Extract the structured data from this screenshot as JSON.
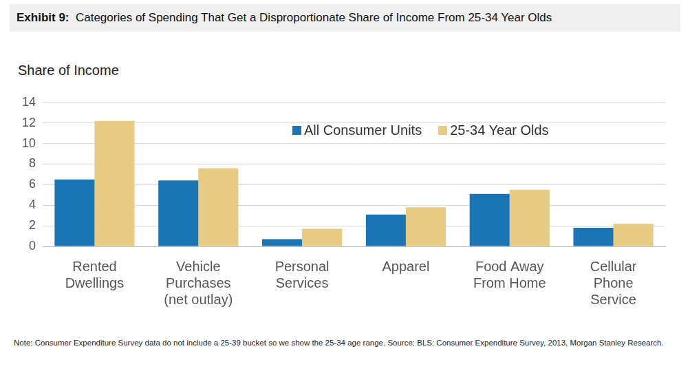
{
  "chart_data": {
    "type": "bar",
    "title": "Exhibit 9:  Categories of Spending That Get a Disproportionate Share of Income From 25-34 Year Olds",
    "y_label": "Share of Income",
    "note": "Note: Consumer Expenditure Survey data do not include a 25-39 bucket so we show the 25-34 age range. Source: BLS: Consumer Expenditure Survey, 2013, Morgan Stanley Research.",
    "categories": [
      "Rented\nDwellings",
      "Vehicle\nPurchases\n(net outlay)",
      "Personal\nServices",
      "Apparel",
      "Food Away\nFrom Home",
      "Cellular\nPhone\nService"
    ],
    "series": [
      {
        "name": "All Consumer Units",
        "color": "#1b75b4",
        "values": [
          6.5,
          6.4,
          0.7,
          3.1,
          5.1,
          1.8
        ]
      },
      {
        "name": "25-34 Year Olds",
        "color": "#e8cb82",
        "values": [
          12.2,
          7.6,
          1.7,
          3.8,
          5.5,
          2.2
        ]
      }
    ],
    "ylim": [
      0,
      14
    ],
    "yticks": [
      0,
      2,
      4,
      6,
      8,
      10,
      12,
      14
    ],
    "grid": true,
    "legend": "top"
  }
}
